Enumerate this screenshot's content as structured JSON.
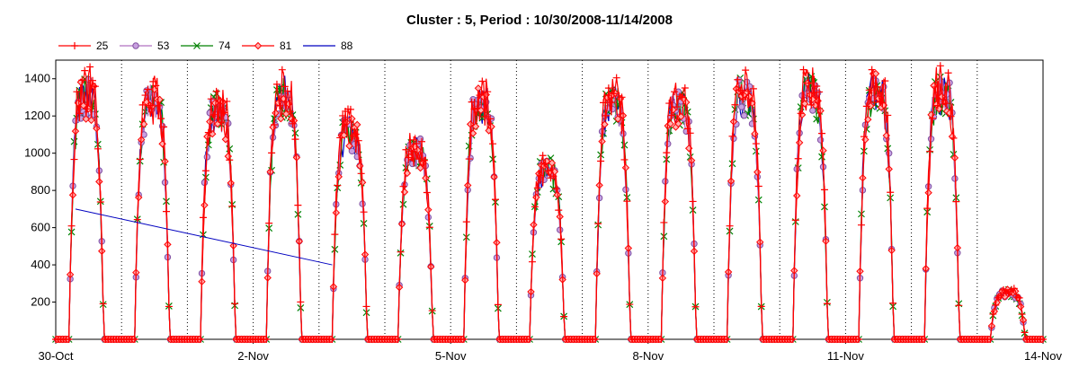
{
  "chart_data": {
    "type": "line",
    "title": "Cluster : 5, Period : 10/30/2008-11/14/2008",
    "xlabel": "",
    "ylabel": "",
    "x_unit": "days",
    "xlim": [
      "30-Oct",
      "14-Nov"
    ],
    "x_ticks": [
      "30-Oct",
      "2-Nov",
      "5-Nov",
      "8-Nov",
      "11-Nov",
      "14-Nov"
    ],
    "ylim": [
      0,
      1500
    ],
    "y_ticks": [
      200,
      400,
      600,
      800,
      1000,
      1200,
      1400
    ],
    "grid": {
      "x": "dotted",
      "y": "none"
    },
    "legend_position": "top-left",
    "series": [
      {
        "name": "25",
        "color": "#ff0000",
        "marker": "plus"
      },
      {
        "name": "53",
        "color": "#b070c0",
        "marker": "circle"
      },
      {
        "name": "74",
        "color": "#008000",
        "marker": "x"
      },
      {
        "name": "81",
        "color": "#ff0000",
        "marker": "diamond"
      },
      {
        "name": "88",
        "color": "#0000c0",
        "marker": "none"
      }
    ],
    "daily_peaks": [
      {
        "day": "30-Oct",
        "peak": 1300
      },
      {
        "day": "31-Oct",
        "peak": 1260
      },
      {
        "day": "1-Nov",
        "peak": 1220
      },
      {
        "day": "2-Nov",
        "peak": 1300
      },
      {
        "day": "3-Nov",
        "peak": 1100
      },
      {
        "day": "4-Nov",
        "peak": 1000
      },
      {
        "day": "5-Nov",
        "peak": 1250
      },
      {
        "day": "6-Nov",
        "peak": 900
      },
      {
        "day": "7-Nov",
        "peak": 1250
      },
      {
        "day": "8-Nov",
        "peak": 1250
      },
      {
        "day": "9-Nov",
        "peak": 1300
      },
      {
        "day": "10-Nov",
        "peak": 1320
      },
      {
        "day": "11-Nov",
        "peak": 1320
      },
      {
        "day": "12-Nov",
        "peak": 1320
      },
      {
        "day": "13-Nov",
        "peak": 250
      }
    ],
    "annotated_line": {
      "series": "88",
      "points": [
        [
          0.3,
          700
        ],
        [
          4.2,
          400
        ]
      ]
    }
  }
}
